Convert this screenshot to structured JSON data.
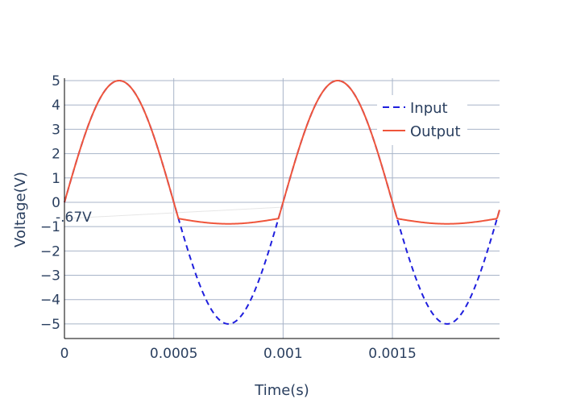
{
  "chart_data": {
    "type": "line",
    "xlabel": "Time(s)",
    "ylabel": "Voltage(V)",
    "xlim": [
      0,
      0.00199
    ],
    "ylim": [
      -5.6,
      5.1
    ],
    "x_ticks": [
      0,
      0.0005,
      0.001,
      0.0015
    ],
    "x_tick_labels": [
      "0",
      "0.0005",
      "0.001",
      "0.0015"
    ],
    "y_ticks": [
      5,
      4,
      3,
      2,
      1,
      0,
      -1,
      -2,
      -3,
      -4,
      -5
    ],
    "y_tick_labels": [
      "5",
      "4",
      "3",
      "2",
      "1",
      "0",
      "−1",
      "−2",
      "−3",
      "−4",
      "−5"
    ],
    "grid": true,
    "legend_position": "top-right",
    "annotation": {
      "text": "-.67V",
      "x": 0,
      "y": -0.67
    },
    "signal": {
      "amplitude": 5,
      "frequency_hz": 1000,
      "clip_level": -0.67
    },
    "series": [
      {
        "name": "Input",
        "style": "dash",
        "color": "#1f1fdd"
      },
      {
        "name": "Output",
        "style": "solid",
        "color": "#ef553b"
      }
    ]
  }
}
